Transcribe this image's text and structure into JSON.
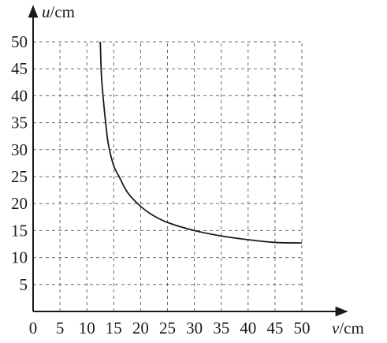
{
  "chart_data": {
    "type": "line",
    "title": "",
    "xlabel": {
      "var": "v",
      "unit": "/cm"
    },
    "ylabel": {
      "var": "u",
      "unit": "/cm"
    },
    "xlim": [
      0,
      50
    ],
    "ylim": [
      0,
      50
    ],
    "grid": true,
    "x_ticks": [
      0,
      5,
      10,
      15,
      20,
      25,
      30,
      35,
      40,
      45,
      50
    ],
    "x_tick_labels": [
      "0",
      "5",
      "10",
      "15",
      "20",
      "25",
      "30",
      "35",
      "40",
      "45",
      "50"
    ],
    "y_ticks": [
      5,
      10,
      15,
      20,
      25,
      30,
      35,
      40,
      45,
      50
    ],
    "y_tick_labels": [
      "5",
      "10",
      "15",
      "20",
      "25",
      "30",
      "35",
      "40",
      "45",
      "50"
    ],
    "series": [
      {
        "x": [
          12.5,
          12.7,
          13,
          13.5,
          14,
          15,
          16,
          17,
          18,
          20,
          22,
          25,
          30,
          35,
          40,
          45,
          50
        ],
        "y": [
          50,
          44,
          40,
          35,
          31,
          27,
          25,
          23,
          21.5,
          19.5,
          18,
          16.5,
          15,
          14,
          13.3,
          12.8,
          12.7
        ]
      }
    ]
  }
}
